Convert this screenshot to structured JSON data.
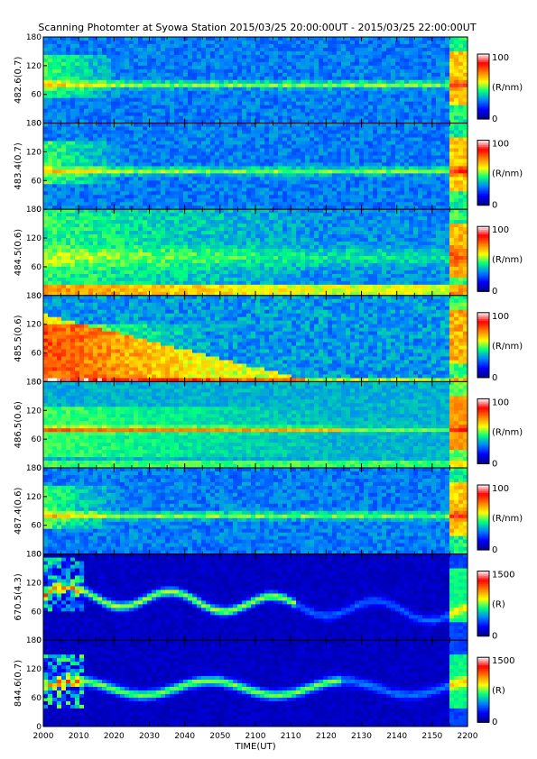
{
  "title": "Scanning Photomter at Syowa Station 2015/03/25 20:00:00UT - 2015/03/25 22:00:00UT",
  "colors": {
    "background_dark": "#00007a",
    "scale": [
      "#000080",
      "#0000ff",
      "#0080ff",
      "#00ff80",
      "#ffff00",
      "#ff8000",
      "#ff0000",
      "#ffffff"
    ]
  },
  "chart_data": {
    "type": "heatmap",
    "xlabel": "TIME(UT)",
    "x_ticks": [
      "2000",
      "2010",
      "2020",
      "2030",
      "2040",
      "2050",
      "2100",
      "2110",
      "2120",
      "2130",
      "2140",
      "2150",
      "2200"
    ],
    "y_ticks": [
      "0",
      "60",
      "120",
      "180"
    ],
    "ylim": [
      0,
      180
    ],
    "panels": [
      {
        "label": "482.6(0.7)",
        "cb_max": "100",
        "cb_min": "0",
        "unit": "(R/nm)",
        "profile": "line"
      },
      {
        "label": "483.4(0.7)",
        "cb_max": "100",
        "cb_min": "0",
        "unit": "(R/nm)",
        "profile": "line"
      },
      {
        "label": "484.5(0.6)",
        "cb_max": "100",
        "cb_min": "0",
        "unit": "(R/nm)",
        "profile": "diffuse"
      },
      {
        "label": "485.5(0.6)",
        "cb_max": "100",
        "cb_min": "0",
        "unit": "(R/nm)",
        "profile": "strong"
      },
      {
        "label": "486.5(0.6)",
        "cb_max": "100",
        "cb_min": "0",
        "unit": "(R/nm)",
        "profile": "bright"
      },
      {
        "label": "487.4(0.6)",
        "cb_max": "100",
        "cb_min": "0",
        "unit": "(R/nm)",
        "profile": "line"
      },
      {
        "label": "670.5(4.3)",
        "cb_max": "1500",
        "cb_min": "0",
        "unit": "(R)",
        "profile": "aurora"
      },
      {
        "label": "844.6(0.7)",
        "cb_max": "1500",
        "cb_min": "0",
        "unit": "(R)",
        "profile": "aurora2"
      }
    ]
  }
}
